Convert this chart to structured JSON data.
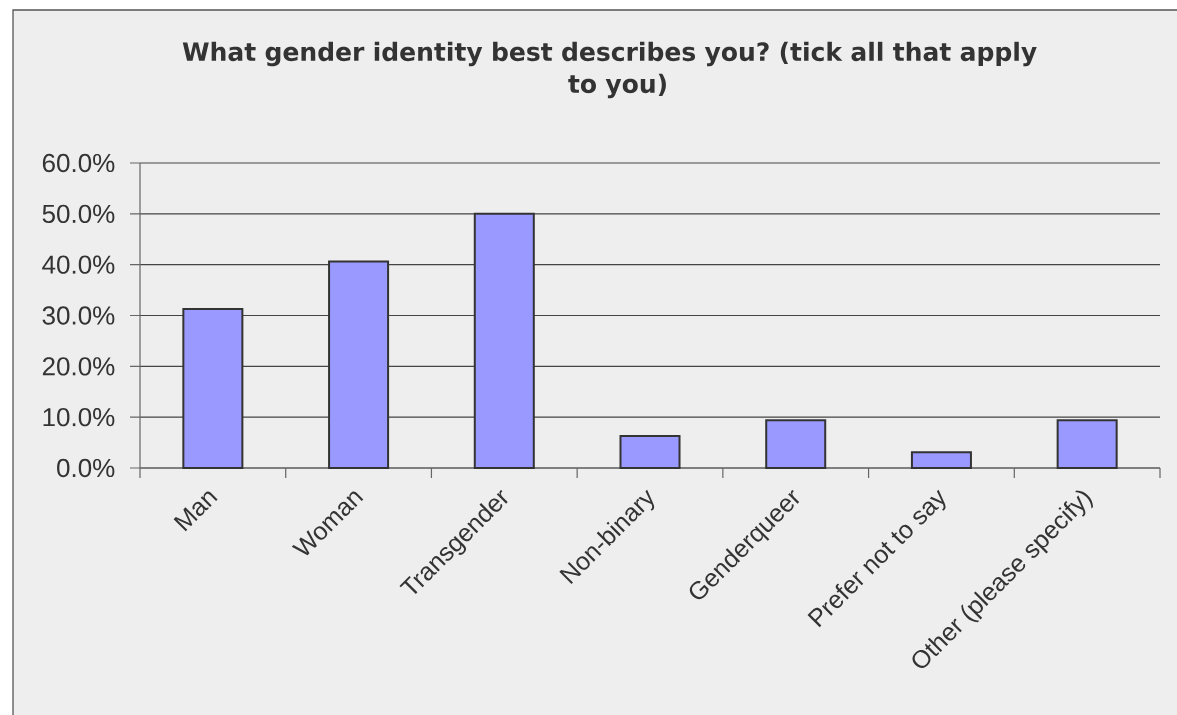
{
  "chart_data": {
    "type": "bar",
    "title": "What gender identity best describes you? (tick all that apply to you)",
    "categories": [
      "Man",
      "Woman",
      "Transgender",
      "Non-binary",
      "Genderqueer",
      "Prefer not to say",
      "Other (please specify)"
    ],
    "values": [
      31.3,
      40.6,
      50.0,
      6.3,
      9.4,
      3.1,
      9.4
    ],
    "color": "#9999ff",
    "ylim": [
      0,
      60
    ],
    "yticks": [
      {
        "value": 0,
        "label": "0.0%"
      },
      {
        "value": 10,
        "label": "10.0%"
      },
      {
        "value": 20,
        "label": "20.0%"
      },
      {
        "value": 30,
        "label": "30.0%"
      },
      {
        "value": 40,
        "label": "40.0%"
      },
      {
        "value": 50,
        "label": "50.0%"
      },
      {
        "value": 60,
        "label": "60.0%"
      }
    ],
    "grid": "y"
  }
}
